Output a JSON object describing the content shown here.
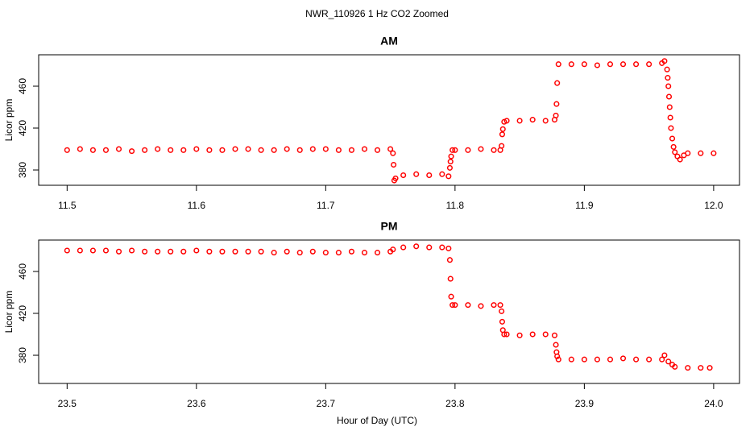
{
  "title": "NWR_110926  1 Hz CO2 Zoomed",
  "xlabel": "Hour of Day (UTC)",
  "chart_data": [
    {
      "type": "scatter",
      "title": "AM",
      "ylabel": "Licor ppm",
      "color": "#ff0000",
      "xlim": [
        11.478,
        12.02
      ],
      "ylim": [
        365.4,
        490
      ],
      "xticks": [
        11.5,
        11.6,
        11.7,
        11.8,
        11.9,
        {
          "value": 12,
          "label": "12.0"
        }
      ],
      "yticks": [
        380,
        420,
        460
      ],
      "x": [
        11.5,
        11.51,
        11.52,
        11.53,
        11.54,
        11.55,
        11.56,
        11.57,
        11.58,
        11.59,
        11.6,
        11.61,
        11.62,
        11.63,
        11.64,
        11.65,
        11.66,
        11.67,
        11.68,
        11.69,
        11.7,
        11.71,
        11.72,
        11.73,
        11.74,
        11.75,
        11.752,
        11.7525,
        11.753,
        11.754,
        11.76,
        11.77,
        11.78,
        11.79,
        11.795,
        11.796,
        11.7965,
        11.797,
        11.798,
        11.8,
        11.81,
        11.82,
        11.83,
        11.835,
        11.836,
        11.8365,
        11.837,
        11.838,
        11.84,
        11.85,
        11.86,
        11.87,
        11.877,
        11.878,
        11.8785,
        11.879,
        11.88,
        11.89,
        11.9,
        11.91,
        11.92,
        11.93,
        11.94,
        11.95,
        11.96,
        11.962,
        11.964,
        11.9645,
        11.965,
        11.9655,
        11.966,
        11.9665,
        11.967,
        11.968,
        11.969,
        11.97,
        11.972,
        11.974,
        11.977,
        11.98,
        11.99,
        12.0
      ],
      "values": [
        399,
        400,
        399,
        399,
        400,
        398,
        399,
        400,
        399,
        399,
        400,
        399,
        399,
        400,
        400,
        399,
        399,
        400,
        399,
        400,
        400,
        399,
        399,
        400,
        399,
        400,
        396,
        385,
        370,
        372,
        375,
        376,
        375,
        376,
        374,
        382,
        388,
        393,
        399,
        399,
        399,
        400,
        399,
        399,
        403,
        414,
        419,
        426,
        427,
        427,
        428,
        427,
        428,
        432,
        443,
        463,
        481,
        481,
        481,
        480,
        481,
        481,
        481,
        481,
        482,
        484,
        476,
        468,
        460,
        450,
        440,
        430,
        420,
        410,
        402,
        397,
        393,
        390,
        394,
        396,
        396,
        396
      ]
    },
    {
      "type": "scatter",
      "title": "PM",
      "ylabel": "Licor ppm",
      "color": "#ff0000",
      "xlim": [
        23.478,
        24.02
      ],
      "ylim": [
        353.1,
        490
      ],
      "xticks": [
        23.5,
        23.6,
        23.7,
        23.8,
        23.9,
        {
          "value": 24,
          "label": "24.0"
        }
      ],
      "yticks": [
        380,
        420,
        460
      ],
      "x": [
        23.5,
        23.51,
        23.52,
        23.53,
        23.54,
        23.55,
        23.56,
        23.57,
        23.58,
        23.59,
        23.6,
        23.61,
        23.62,
        23.63,
        23.64,
        23.65,
        23.66,
        23.67,
        23.68,
        23.69,
        23.7,
        23.71,
        23.72,
        23.73,
        23.74,
        23.75,
        23.752,
        23.76,
        23.77,
        23.78,
        23.79,
        23.795,
        23.796,
        23.7965,
        23.797,
        23.798,
        23.8,
        23.81,
        23.82,
        23.83,
        23.835,
        23.836,
        23.8365,
        23.837,
        23.838,
        23.84,
        23.85,
        23.86,
        23.87,
        23.877,
        23.878,
        23.8785,
        23.879,
        23.88,
        23.89,
        23.9,
        23.91,
        23.92,
        23.93,
        23.94,
        23.95,
        23.96,
        23.962,
        23.965,
        23.968,
        23.97,
        23.98,
        23.99,
        23.997
      ],
      "values": [
        480,
        480,
        480,
        480,
        479,
        480,
        479,
        479,
        479,
        479,
        480,
        479,
        479,
        479,
        479,
        479,
        478,
        479,
        478,
        479,
        478,
        478,
        479,
        478,
        478,
        479,
        481,
        483,
        484,
        483,
        483,
        482,
        471,
        453,
        436,
        428,
        428,
        428,
        427,
        428,
        428,
        422,
        412,
        404,
        400,
        400,
        399,
        400,
        400,
        399,
        390,
        383,
        379,
        376,
        376,
        376,
        376,
        376,
        377,
        376,
        376,
        376,
        380,
        374,
        371,
        369,
        368,
        368,
        368
      ]
    }
  ]
}
